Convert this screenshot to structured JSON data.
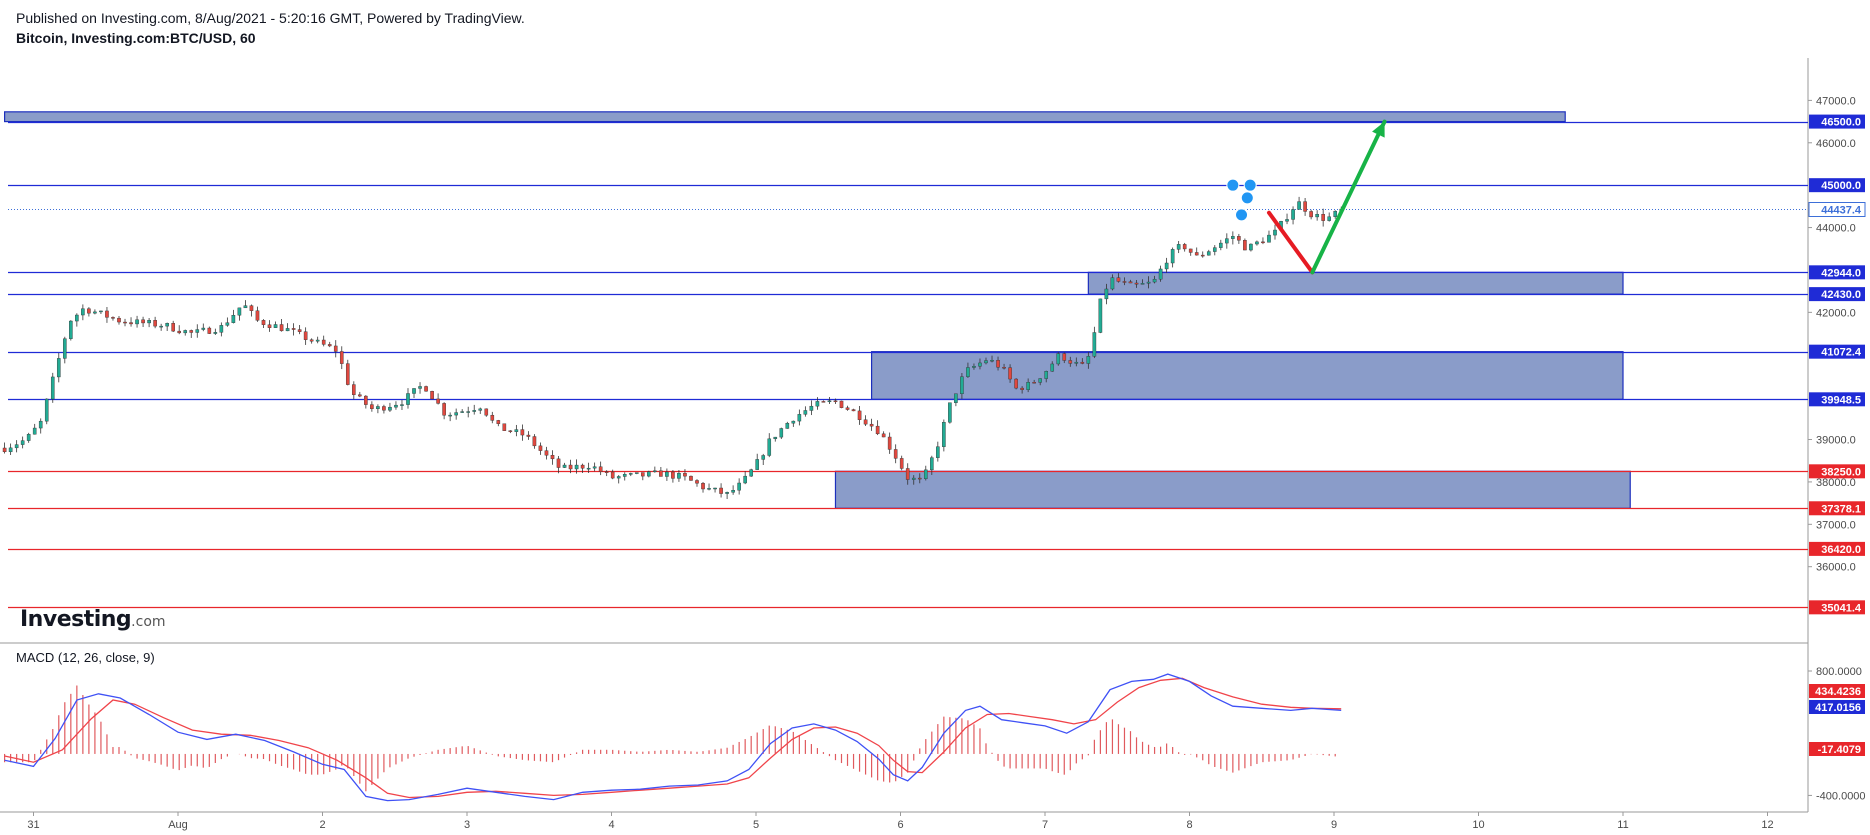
{
  "header": {
    "published": "Published on Investing.com, 8/Aug/2021 - 5:20:16 GMT, Powered by TradingView.",
    "symbol": "Bitcoin, Investing.com:BTC/USD, 60"
  },
  "logo": {
    "main": "Investing",
    "suffix": ".com"
  },
  "colors": {
    "bull": "#22ab94",
    "bear": "#e0483f",
    "zone_fill": "#8a9cc9",
    "zone_stroke": "#1c2fbd",
    "blue_line": "#1f2bd6",
    "red_line": "#e8262b",
    "macd_line": "#3f51f5",
    "signal_line": "#f0444a",
    "arrow_up": "#17b347",
    "arrow_down": "#e61b23",
    "pin": "#2196f3"
  },
  "chart_data": [
    {
      "type": "candlestick",
      "title": "Bitcoin, Investing.com:BTC/USD, 60",
      "x_ticks": [
        {
          "label": "31",
          "day": -1
        },
        {
          "label": "Aug",
          "day": 0
        },
        {
          "label": "2",
          "day": 1
        },
        {
          "label": "3",
          "day": 2
        },
        {
          "label": "4",
          "day": 3
        },
        {
          "label": "5",
          "day": 4
        },
        {
          "label": "6",
          "day": 5
        },
        {
          "label": "7",
          "day": 6
        },
        {
          "label": "8",
          "day": 7
        },
        {
          "label": "9",
          "day": 8
        },
        {
          "label": "10",
          "day": 9
        },
        {
          "label": "11",
          "day": 10
        },
        {
          "label": "12",
          "day": 11
        }
      ],
      "y_ticks": [
        "47000.0",
        "46000.0",
        "44000.0",
        "42000.0",
        "39000.0",
        "38000.0",
        "37000.0",
        "36000.0"
      ],
      "ylim": [
        34200,
        48000
      ],
      "current_price": "44437.4",
      "levels": [
        {
          "value": 46500.0,
          "label": "46500.0",
          "color": "blue"
        },
        {
          "value": 45000.0,
          "label": "45000.0",
          "color": "blue"
        },
        {
          "value": 42944.0,
          "label": "42944.0",
          "color": "blue"
        },
        {
          "value": 42430.0,
          "label": "42430.0",
          "color": "blue"
        },
        {
          "value": 41072.4,
          "label": "41072.4",
          "color": "blue"
        },
        {
          "value": 39948.5,
          "label": "39948.5",
          "color": "blue"
        },
        {
          "value": 38250.0,
          "label": "38250.0",
          "color": "red"
        },
        {
          "value": 37378.1,
          "label": "37378.1",
          "color": "red"
        },
        {
          "value": 36420.0,
          "label": "36420.0",
          "color": "red"
        },
        {
          "value": 35041.4,
          "label": "35041.4",
          "color": "red"
        }
      ],
      "zones": [
        {
          "x_start": -1.2,
          "x_end": 9.6,
          "y_low": 46500,
          "y_high": 46730
        },
        {
          "x_start": 6.3,
          "x_end": 10.0,
          "y_low": 42430,
          "y_high": 42944
        },
        {
          "x_start": 4.8,
          "x_end": 10.0,
          "y_low": 39948.5,
          "y_high": 41072.4
        },
        {
          "x_start": 4.55,
          "x_end": 10.05,
          "y_low": 37378.1,
          "y_high": 38250
        }
      ],
      "arrows": [
        {
          "direction": "down",
          "from": [
            7.55,
            44350
          ],
          "to": [
            7.85,
            42944
          ]
        },
        {
          "direction": "up",
          "from": [
            7.85,
            42944
          ],
          "to": [
            8.35,
            46500
          ]
        }
      ],
      "close_path": [
        [
          -1.2,
          38800
        ],
        [
          -1.05,
          39000
        ],
        [
          -0.95,
          39400
        ],
        [
          -0.85,
          40600
        ],
        [
          -0.75,
          41800
        ],
        [
          -0.65,
          42100
        ],
        [
          -0.4,
          41800
        ],
        [
          -0.1,
          41700
        ],
        [
          0.1,
          41500
        ],
        [
          0.3,
          41650
        ],
        [
          0.45,
          42200
        ],
        [
          0.55,
          41800
        ],
        [
          0.75,
          41600
        ],
        [
          0.95,
          41300
        ],
        [
          1.1,
          41100
        ],
        [
          1.2,
          40100
        ],
        [
          1.35,
          39700
        ],
        [
          1.55,
          39900
        ],
        [
          1.7,
          40300
        ],
        [
          1.85,
          39600
        ],
        [
          2.0,
          39700
        ],
        [
          2.1,
          39800
        ],
        [
          2.2,
          39300
        ],
        [
          2.4,
          39100
        ],
        [
          2.55,
          38600
        ],
        [
          2.65,
          38300
        ],
        [
          2.85,
          38400
        ],
        [
          3.0,
          38100
        ],
        [
          3.2,
          38150
        ],
        [
          3.35,
          38200
        ],
        [
          3.5,
          38100
        ],
        [
          3.65,
          37850
        ],
        [
          3.8,
          37700
        ],
        [
          3.9,
          37950
        ],
        [
          4.0,
          38400
        ],
        [
          4.1,
          39000
        ],
        [
          4.25,
          39500
        ],
        [
          4.4,
          39800
        ],
        [
          4.55,
          39900
        ],
        [
          4.7,
          39600
        ],
        [
          4.85,
          39200
        ],
        [
          4.95,
          38700
        ],
        [
          5.05,
          38100
        ],
        [
          5.15,
          38000
        ],
        [
          5.25,
          38800
        ],
        [
          5.35,
          39900
        ],
        [
          5.45,
          40600
        ],
        [
          5.6,
          40900
        ],
        [
          5.7,
          40700
        ],
        [
          5.8,
          40200
        ],
        [
          5.9,
          40300
        ],
        [
          6.0,
          40600
        ],
        [
          6.1,
          41000
        ],
        [
          6.2,
          40800
        ],
        [
          6.28,
          40700
        ],
        [
          6.33,
          41300
        ],
        [
          6.38,
          42200
        ],
        [
          6.45,
          42800
        ],
        [
          6.6,
          42600
        ],
        [
          6.75,
          42700
        ],
        [
          6.85,
          43300
        ],
        [
          6.95,
          43600
        ],
        [
          7.05,
          43300
        ],
        [
          7.15,
          43500
        ],
        [
          7.3,
          43800
        ],
        [
          7.4,
          43500
        ],
        [
          7.5,
          43700
        ],
        [
          7.6,
          43900
        ],
        [
          7.7,
          44400
        ],
        [
          7.75,
          44600
        ],
        [
          7.85,
          44300
        ],
        [
          7.95,
          44200
        ],
        [
          8.05,
          44400
        ]
      ]
    },
    {
      "type": "line",
      "title": "MACD (12, 26, close, 9)",
      "y_ticks": [
        "800.0000",
        "-400.0000"
      ],
      "ylim": [
        -560,
        1070
      ],
      "values_shown": {
        "signal": "434.4236",
        "macd": "417.0156",
        "histogram": "-17.4079"
      },
      "series": [
        {
          "role": "macd",
          "points": [
            [
              -1.2,
              -60
            ],
            [
              -1.0,
              -120
            ],
            [
              -0.85,
              150
            ],
            [
              -0.7,
              520
            ],
            [
              -0.55,
              580
            ],
            [
              -0.4,
              540
            ],
            [
              -0.2,
              380
            ],
            [
              0,
              210
            ],
            [
              0.2,
              140
            ],
            [
              0.4,
              190
            ],
            [
              0.6,
              130
            ],
            [
              0.8,
              20
            ],
            [
              1.0,
              -100
            ],
            [
              1.15,
              -150
            ],
            [
              1.3,
              -410
            ],
            [
              1.45,
              -450
            ],
            [
              1.6,
              -440
            ],
            [
              1.8,
              -390
            ],
            [
              2.0,
              -330
            ],
            [
              2.2,
              -370
            ],
            [
              2.4,
              -410
            ],
            [
              2.6,
              -440
            ],
            [
              2.8,
              -370
            ],
            [
              3.0,
              -350
            ],
            [
              3.2,
              -340
            ],
            [
              3.4,
              -310
            ],
            [
              3.6,
              -300
            ],
            [
              3.8,
              -260
            ],
            [
              3.95,
              -150
            ],
            [
              4.1,
              100
            ],
            [
              4.25,
              250
            ],
            [
              4.4,
              290
            ],
            [
              4.55,
              230
            ],
            [
              4.7,
              120
            ],
            [
              4.85,
              -50
            ],
            [
              4.95,
              -200
            ],
            [
              5.05,
              -260
            ],
            [
              5.15,
              -130
            ],
            [
              5.3,
              200
            ],
            [
              5.45,
              420
            ],
            [
              5.55,
              460
            ],
            [
              5.7,
              330
            ],
            [
              5.85,
              300
            ],
            [
              6.0,
              270
            ],
            [
              6.15,
              200
            ],
            [
              6.3,
              310
            ],
            [
              6.45,
              620
            ],
            [
              6.6,
              700
            ],
            [
              6.75,
              720
            ],
            [
              6.85,
              770
            ],
            [
              7.0,
              700
            ],
            [
              7.15,
              560
            ],
            [
              7.3,
              460
            ],
            [
              7.5,
              440
            ],
            [
              7.7,
              420
            ],
            [
              7.85,
              440
            ],
            [
              8.05,
              420
            ]
          ]
        },
        {
          "role": "signal",
          "points": [
            [
              -1.2,
              -20
            ],
            [
              -1.0,
              -80
            ],
            [
              -0.8,
              40
            ],
            [
              -0.6,
              340
            ],
            [
              -0.45,
              520
            ],
            [
              -0.3,
              480
            ],
            [
              -0.1,
              350
            ],
            [
              0.1,
              230
            ],
            [
              0.3,
              190
            ],
            [
              0.5,
              180
            ],
            [
              0.7,
              130
            ],
            [
              0.9,
              60
            ],
            [
              1.1,
              -60
            ],
            [
              1.3,
              -230
            ],
            [
              1.45,
              -380
            ],
            [
              1.6,
              -420
            ],
            [
              1.8,
              -410
            ],
            [
              2.0,
              -370
            ],
            [
              2.2,
              -360
            ],
            [
              2.4,
              -380
            ],
            [
              2.6,
              -400
            ],
            [
              2.8,
              -390
            ],
            [
              3.0,
              -370
            ],
            [
              3.2,
              -350
            ],
            [
              3.4,
              -330
            ],
            [
              3.6,
              -310
            ],
            [
              3.8,
              -290
            ],
            [
              3.95,
              -230
            ],
            [
              4.1,
              -40
            ],
            [
              4.25,
              140
            ],
            [
              4.4,
              250
            ],
            [
              4.55,
              260
            ],
            [
              4.7,
              200
            ],
            [
              4.85,
              80
            ],
            [
              4.95,
              -60
            ],
            [
              5.05,
              -170
            ],
            [
              5.15,
              -180
            ],
            [
              5.3,
              20
            ],
            [
              5.45,
              250
            ],
            [
              5.6,
              380
            ],
            [
              5.75,
              390
            ],
            [
              5.9,
              360
            ],
            [
              6.05,
              330
            ],
            [
              6.2,
              290
            ],
            [
              6.35,
              330
            ],
            [
              6.5,
              500
            ],
            [
              6.65,
              640
            ],
            [
              6.8,
              710
            ],
            [
              6.95,
              730
            ],
            [
              7.1,
              640
            ],
            [
              7.3,
              550
            ],
            [
              7.5,
              480
            ],
            [
              7.7,
              450
            ],
            [
              7.85,
              440
            ],
            [
              8.05,
              435
            ]
          ]
        }
      ]
    }
  ]
}
